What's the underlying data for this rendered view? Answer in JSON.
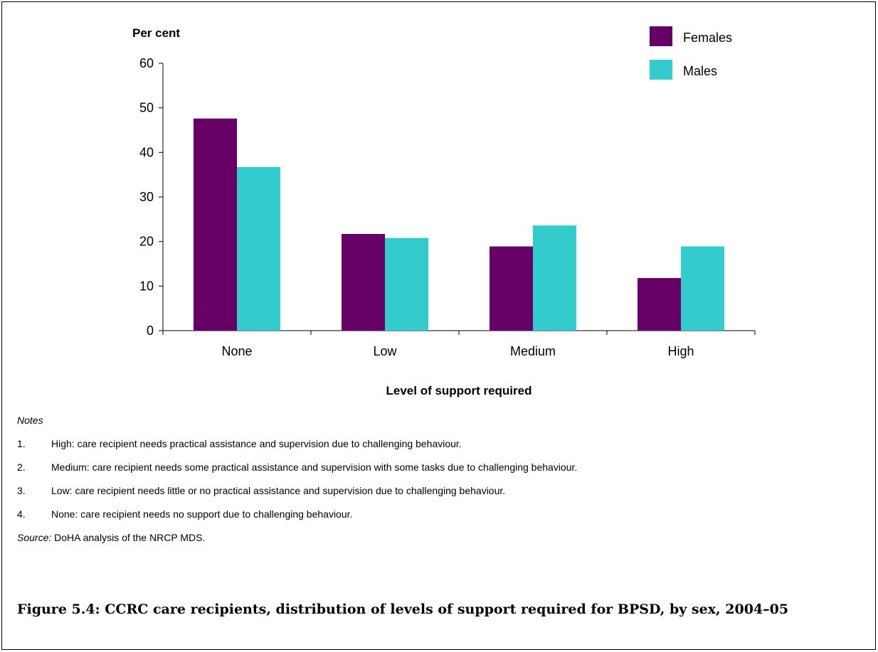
{
  "chart_data": {
    "type": "bar",
    "ylabel": "Per cent",
    "xlabel": "Level of support required",
    "categories": [
      "None",
      "Low",
      "Medium",
      "High"
    ],
    "series": [
      {
        "name": "Females",
        "color": "#660066",
        "values": [
          47.6,
          21.7,
          18.9,
          11.8
        ]
      },
      {
        "name": "Males",
        "color": "#33CCCC",
        "values": [
          36.7,
          20.8,
          23.6,
          18.9
        ]
      }
    ],
    "ylim": [
      0,
      60
    ],
    "yticks": [
      0,
      10,
      20,
      30,
      40,
      50,
      60
    ],
    "grid": false,
    "legend": "top-right"
  },
  "notes": {
    "heading": "Notes",
    "items": [
      {
        "num": "1.",
        "text": "High: care recipient needs practical assistance and supervision due to challenging behaviour."
      },
      {
        "num": "2.",
        "text": "Medium: care recipient needs some practical assistance and supervision with some tasks due to challenging behaviour."
      },
      {
        "num": "3.",
        "text": "Low: care recipient needs little or no practical assistance and supervision due to challenging behaviour."
      },
      {
        "num": "4.",
        "text": "None: care recipient needs no support due to challenging behaviour."
      }
    ],
    "source_label": "Source:",
    "source_text": " DoHA analysis of the NRCP MDS."
  },
  "figure_title": "Figure 5.4: CCRC care recipients, distribution of levels of support required for BPSD, by sex, 2004–05"
}
